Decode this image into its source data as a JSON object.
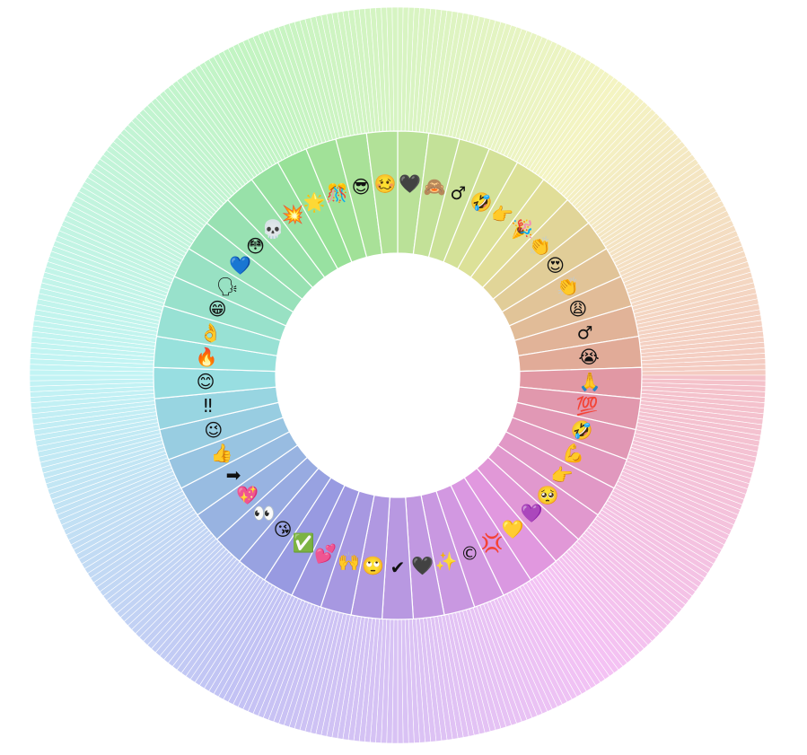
{
  "chart_data": {
    "type": "sunburst",
    "title": "",
    "outer_ring_segment_count": 420,
    "inner_ring": {
      "labels": [
        "🖤",
        "🙈",
        "♂",
        "🤣",
        "👉",
        "🎉",
        "👏",
        "😍",
        "👏",
        "😩",
        "♂",
        "😭",
        "🙏",
        "💯",
        "🤣",
        "💪",
        "👉",
        "🥺",
        "💜",
        "💛",
        "💢",
        "©",
        "✨",
        "🖤",
        "✔",
        "🙄",
        "🙌",
        "💕",
        "✅",
        "😘",
        "👀",
        "💖",
        "➡",
        "👍",
        "😉",
        "‼",
        "😊",
        "🔥",
        "👌",
        "😁",
        "🗣",
        "💙",
        "😳",
        "💀",
        "💥",
        "🌟",
        "🎊",
        "😎",
        "🥴"
      ]
    }
  }
}
